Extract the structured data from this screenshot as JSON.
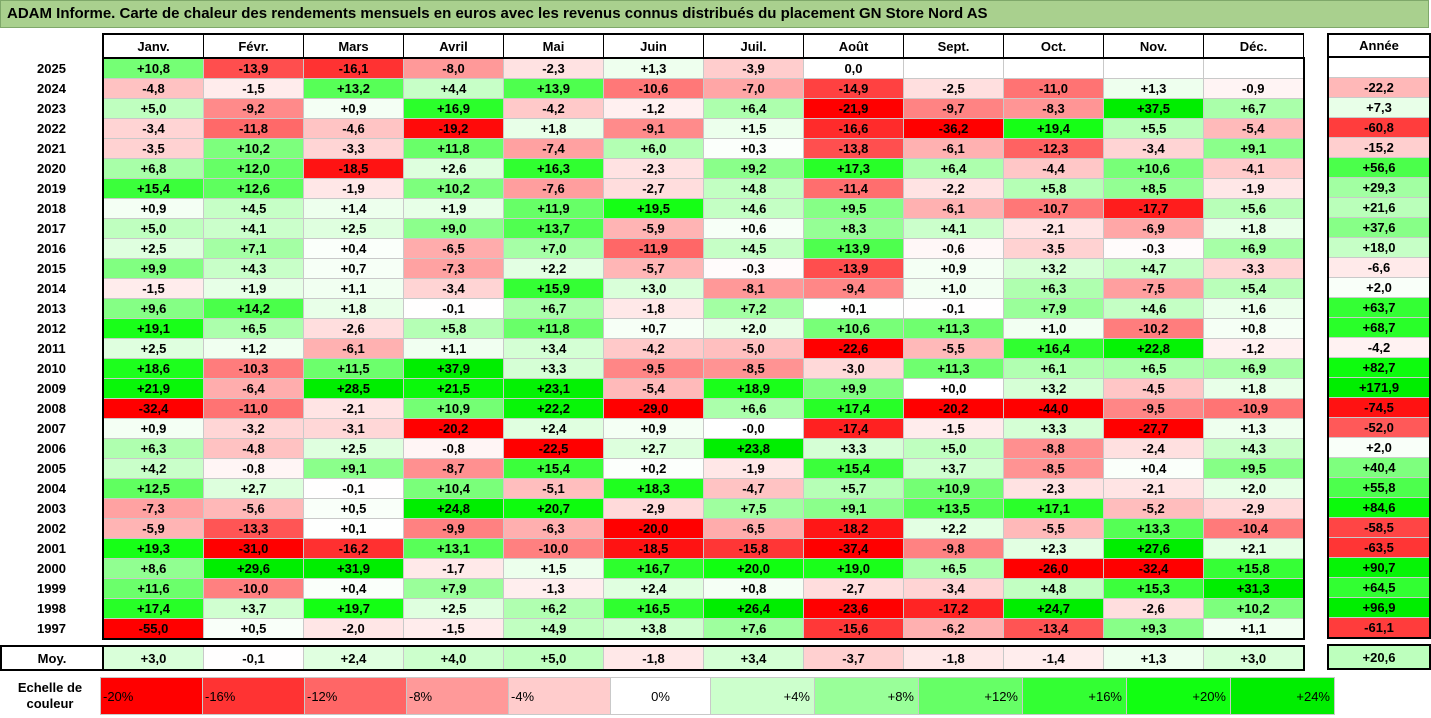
{
  "title": "ADAM Informe. Carte de chaleur des rendements mensuels en euros avec les revenus connus distribués du placement GN Store Nord AS",
  "chart_data": {
    "type": "heatmap",
    "title": "ADAM Informe. Carte de chaleur des rendements mensuels en euros avec les revenus connus distribués du placement GN Store Nord AS",
    "months": [
      "Janv.",
      "Févr.",
      "Mars",
      "Avril",
      "Mai",
      "Juin",
      "Juil.",
      "Août",
      "Sept.",
      "Oct.",
      "Nov.",
      "Déc."
    ],
    "annual_label": "Année",
    "rows": [
      {
        "year": "2025",
        "values": [
          "+10,8",
          "-13,9",
          "-16,1",
          "-8,0",
          "-2,3",
          "+1,3",
          "-3,9",
          "0,0",
          "",
          "",
          "",
          ""
        ],
        "annual": ""
      },
      {
        "year": "2024",
        "values": [
          "-4,8",
          "-1,5",
          "+13,2",
          "+4,4",
          "+13,9",
          "-10,6",
          "-7,0",
          "-14,9",
          "-2,5",
          "-11,0",
          "+1,3",
          "-0,9"
        ],
        "annual": "-22,2"
      },
      {
        "year": "2023",
        "values": [
          "+5,0",
          "-9,2",
          "+0,9",
          "+16,9",
          "-4,2",
          "-1,2",
          "+6,4",
          "-21,9",
          "-9,7",
          "-8,3",
          "+37,5",
          "+6,7"
        ],
        "annual": "+7,3"
      },
      {
        "year": "2022",
        "values": [
          "-3,4",
          "-11,8",
          "-4,6",
          "-19,2",
          "+1,8",
          "-9,1",
          "+1,5",
          "-16,6",
          "-36,2",
          "+19,4",
          "+5,5",
          "-5,4"
        ],
        "annual": "-60,8"
      },
      {
        "year": "2021",
        "values": [
          "-3,5",
          "+10,2",
          "-3,3",
          "+11,8",
          "-7,4",
          "+6,0",
          "+0,3",
          "-13,8",
          "-6,1",
          "-12,3",
          "-3,4",
          "+9,1"
        ],
        "annual": "-15,2"
      },
      {
        "year": "2020",
        "values": [
          "+6,8",
          "+12,0",
          "-18,5",
          "+2,6",
          "+16,3",
          "-2,3",
          "+9,2",
          "+17,3",
          "+6,4",
          "-4,4",
          "+10,6",
          "-4,1"
        ],
        "annual": "+56,6"
      },
      {
        "year": "2019",
        "values": [
          "+15,4",
          "+12,6",
          "-1,9",
          "+10,2",
          "-7,6",
          "-2,7",
          "+4,8",
          "-11,4",
          "-2,2",
          "+5,8",
          "+8,5",
          "-1,9"
        ],
        "annual": "+29,3"
      },
      {
        "year": "2018",
        "values": [
          "+0,9",
          "+4,5",
          "+1,4",
          "+1,9",
          "+11,9",
          "+19,5",
          "+4,6",
          "+9,5",
          "-6,1",
          "-10,7",
          "-17,7",
          "+5,6"
        ],
        "annual": "+21,6"
      },
      {
        "year": "2017",
        "values": [
          "+5,0",
          "+4,1",
          "+2,5",
          "+9,0",
          "+13,7",
          "-5,9",
          "+0,6",
          "+8,3",
          "+4,1",
          "-2,1",
          "-6,9",
          "+1,8"
        ],
        "annual": "+37,6"
      },
      {
        "year": "2016",
        "values": [
          "+2,5",
          "+7,1",
          "+0,4",
          "-6,5",
          "+7,0",
          "-11,9",
          "+4,5",
          "+13,9",
          "-0,6",
          "-3,5",
          "-0,3",
          "+6,9"
        ],
        "annual": "+18,0"
      },
      {
        "year": "2015",
        "values": [
          "+9,9",
          "+4,3",
          "+0,7",
          "-7,3",
          "+2,2",
          "-5,7",
          "-0,3",
          "-13,9",
          "+0,9",
          "+3,2",
          "+4,7",
          "-3,3"
        ],
        "annual": "-6,6"
      },
      {
        "year": "2014",
        "values": [
          "-1,5",
          "+1,9",
          "+1,1",
          "-3,4",
          "+15,9",
          "+3,0",
          "-8,1",
          "-9,4",
          "+1,0",
          "+6,3",
          "-7,5",
          "+5,4"
        ],
        "annual": "+2,0"
      },
      {
        "year": "2013",
        "values": [
          "+9,6",
          "+14,2",
          "+1,8",
          "-0,1",
          "+6,7",
          "-1,8",
          "+7,2",
          "+0,1",
          "-0,1",
          "+7,9",
          "+4,6",
          "+1,6"
        ],
        "annual": "+63,7"
      },
      {
        "year": "2012",
        "values": [
          "+19,1",
          "+6,5",
          "-2,6",
          "+5,8",
          "+11,8",
          "+0,7",
          "+2,0",
          "+10,6",
          "+11,3",
          "+1,0",
          "-10,2",
          "+0,8"
        ],
        "annual": "+68,7"
      },
      {
        "year": "2011",
        "values": [
          "+2,5",
          "+1,2",
          "-6,1",
          "+1,1",
          "+3,4",
          "-4,2",
          "-5,0",
          "-22,6",
          "-5,5",
          "+16,4",
          "+22,8",
          "-1,2"
        ],
        "annual": "-4,2"
      },
      {
        "year": "2010",
        "values": [
          "+18,6",
          "-10,3",
          "+11,5",
          "+37,9",
          "+3,3",
          "-9,5",
          "-8,5",
          "-3,0",
          "+11,3",
          "+6,1",
          "+6,5",
          "+6,9"
        ],
        "annual": "+82,7"
      },
      {
        "year": "2009",
        "values": [
          "+21,9",
          "-6,4",
          "+28,5",
          "+21,5",
          "+23,1",
          "-5,4",
          "+18,9",
          "+9,9",
          "+0,0",
          "+3,2",
          "-4,5",
          "+1,8"
        ],
        "annual": "+171,9"
      },
      {
        "year": "2008",
        "values": [
          "-32,4",
          "-11,0",
          "-2,1",
          "+10,9",
          "+22,2",
          "-29,0",
          "+6,6",
          "+17,4",
          "-20,2",
          "-44,0",
          "-9,5",
          "-10,9"
        ],
        "annual": "-74,5"
      },
      {
        "year": "2007",
        "values": [
          "+0,9",
          "-3,2",
          "-3,1",
          "-20,2",
          "+2,4",
          "+0,9",
          "-0,0",
          "-17,4",
          "-1,5",
          "+3,3",
          "-27,7",
          "+1,3"
        ],
        "annual": "-52,0"
      },
      {
        "year": "2006",
        "values": [
          "+6,3",
          "-4,8",
          "+2,5",
          "-0,8",
          "-22,5",
          "+2,7",
          "+23,8",
          "+3,3",
          "+5,0",
          "-8,8",
          "-2,4",
          "+4,3"
        ],
        "annual": "+2,0"
      },
      {
        "year": "2005",
        "values": [
          "+4,2",
          "-0,8",
          "+9,1",
          "-8,7",
          "+15,4",
          "+0,2",
          "-1,9",
          "+15,4",
          "+3,7",
          "-8,5",
          "+0,4",
          "+9,5"
        ],
        "annual": "+40,4"
      },
      {
        "year": "2004",
        "values": [
          "+12,5",
          "+2,7",
          "-0,1",
          "+10,4",
          "-5,1",
          "+18,3",
          "-4,7",
          "+5,7",
          "+10,9",
          "-2,3",
          "-2,1",
          "+2,0"
        ],
        "annual": "+55,8"
      },
      {
        "year": "2003",
        "values": [
          "-7,3",
          "-5,6",
          "+0,5",
          "+24,8",
          "+20,7",
          "-2,9",
          "+7,5",
          "+9,1",
          "+13,5",
          "+17,1",
          "-5,2",
          "-2,9"
        ],
        "annual": "+84,6"
      },
      {
        "year": "2002",
        "values": [
          "-5,9",
          "-13,3",
          "+0,1",
          "-9,9",
          "-6,3",
          "-20,0",
          "-6,5",
          "-18,2",
          "+2,2",
          "-5,5",
          "+13,3",
          "-10,4"
        ],
        "annual": "-58,5"
      },
      {
        "year": "2001",
        "values": [
          "+19,3",
          "-31,0",
          "-16,2",
          "+13,1",
          "-10,0",
          "-18,5",
          "-15,8",
          "-37,4",
          "-9,8",
          "+2,3",
          "+27,6",
          "+2,1"
        ],
        "annual": "-63,5"
      },
      {
        "year": "2000",
        "values": [
          "+8,6",
          "+29,6",
          "+31,9",
          "-1,7",
          "+1,5",
          "+16,7",
          "+20,0",
          "+19,0",
          "+6,5",
          "-26,0",
          "-32,4",
          "+15,8"
        ],
        "annual": "+90,7"
      },
      {
        "year": "1999",
        "values": [
          "+11,6",
          "-10,0",
          "+0,4",
          "+7,9",
          "-1,3",
          "+2,4",
          "+0,8",
          "-2,7",
          "-3,4",
          "+4,8",
          "+15,3",
          "+31,3"
        ],
        "annual": "+64,5"
      },
      {
        "year": "1998",
        "values": [
          "+17,4",
          "+3,7",
          "+19,7",
          "+2,5",
          "+6,2",
          "+16,5",
          "+26,4",
          "-23,6",
          "-17,2",
          "+24,7",
          "-2,6",
          "+10,2"
        ],
        "annual": "+96,9"
      },
      {
        "year": "1997",
        "values": [
          "-55,0",
          "+0,5",
          "-2,0",
          "-1,5",
          "+4,9",
          "+3,8",
          "+7,6",
          "-15,6",
          "-6,2",
          "-13,4",
          "+9,3",
          "+1,1"
        ],
        "annual": "-61,1"
      }
    ],
    "average": {
      "label": "Moy.",
      "values": [
        "+3,0",
        "-0,1",
        "+2,4",
        "+4,0",
        "+5,0",
        "-1,8",
        "+3,4",
        "-3,7",
        "-1,8",
        "-1,4",
        "+1,3",
        "+3,0"
      ],
      "annual": "+20,6"
    },
    "color_scale": {
      "label": "Echelle de couleur",
      "steps": [
        {
          "label": "-20%",
          "value": -20,
          "color": "#ff0000"
        },
        {
          "label": "-16%",
          "value": -16,
          "color": "#ff3333"
        },
        {
          "label": "-12%",
          "value": -12,
          "color": "#ff6666"
        },
        {
          "label": "-8%",
          "value": -8,
          "color": "#ff9999"
        },
        {
          "label": "-4%",
          "value": -4,
          "color": "#ffcccc"
        },
        {
          "label": "0%",
          "value": 0,
          "color": "#ffffff"
        },
        {
          "label": "+4%",
          "value": 4,
          "color": "#ccffcc"
        },
        {
          "label": "+8%",
          "value": 8,
          "color": "#99ff99"
        },
        {
          "label": "+12%",
          "value": 12,
          "color": "#66ff66"
        },
        {
          "label": "+16%",
          "value": 16,
          "color": "#33ff33"
        },
        {
          "label": "+20%",
          "value": 20,
          "color": "#11ff11"
        },
        {
          "label": "+24%",
          "value": 24,
          "color": "#00ee00"
        }
      ]
    }
  }
}
